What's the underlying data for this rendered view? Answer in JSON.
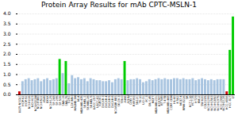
{
  "chart_data": {
    "type": "bar",
    "title": "Protein Array Results for mAb CPTC-MSLN-1",
    "categories": [
      "LU25-NSCLC",
      "HOP-62",
      "HOP-92",
      "NCI-H226",
      "NCI-H23",
      "NCI-H322M",
      "NCI-H460",
      "NCI-H522",
      "A549",
      "EKVX",
      "NCI-H125",
      "SF-268",
      "SF-295",
      "SF-539",
      "SNB-19",
      "SNB-75",
      "U251",
      "LOX IMVI",
      "MALME-3M",
      "M14",
      "MDA-MB-435",
      "SK-MEL-2",
      "SK-MEL-28",
      "SK-MEL-5",
      "UACC-257",
      "UACC-62",
      "IGROV1",
      "OVCAR-3",
      "OVCAR-4",
      "OVCAR-5",
      "OVCAR-8",
      "NCI/ADR-RES",
      "SK-OV-3",
      "786-0",
      "A498",
      "ACHN",
      "CAKI-1",
      "RXF393",
      "SN12C",
      "TK-10",
      "UO-31",
      "PC-3",
      "DU-145",
      "MCF7",
      "MDA-MB-231",
      "HS578T",
      "BT-549",
      "T-47D",
      "MDA-MB-468",
      "CCRF-CEM",
      "HL-60",
      "K-562",
      "MOLT-4",
      "RPMI-8226",
      "SR",
      "HCT-116",
      "HCT-15",
      "HT29",
      "KM12",
      "SW-620",
      "COLO205",
      "NCI-H1299",
      "NCI-H1563",
      "NCI-H1650",
      "NCI-H1975",
      "HCC-2998",
      "NCI-H2126",
      "HCC-4006",
      "HCC-827",
      "LT"
    ],
    "values": [
      0.15,
      0.65,
      0.75,
      0.8,
      0.7,
      0.75,
      0.8,
      0.65,
      0.75,
      0.8,
      0.7,
      0.75,
      0.8,
      1.75,
      1.05,
      1.65,
      0.55,
      0.95,
      0.8,
      0.85,
      0.75,
      0.8,
      0.65,
      0.8,
      0.75,
      0.7,
      0.7,
      0.65,
      0.65,
      0.7,
      0.6,
      0.75,
      0.8,
      0.75,
      1.65,
      0.7,
      0.75,
      0.75,
      0.8,
      0.75,
      0.6,
      0.65,
      0.75,
      0.7,
      0.75,
      0.8,
      0.75,
      0.8,
      0.75,
      0.75,
      0.8,
      0.8,
      0.75,
      0.8,
      0.75,
      0.75,
      0.8,
      0.7,
      0.75,
      0.8,
      0.75,
      0.7,
      0.75,
      0.7,
      0.75,
      0.75,
      0.75,
      0.15,
      2.2,
      3.85
    ],
    "colors": [
      "#cc0000",
      "#a8c4e0",
      "#a8c4e0",
      "#a8c4e0",
      "#a8c4e0",
      "#a8c4e0",
      "#a8c4e0",
      "#a8c4e0",
      "#a8c4e0",
      "#a8c4e0",
      "#a8c4e0",
      "#a8c4e0",
      "#a8c4e0",
      "#00cc00",
      "#a8c4e0",
      "#00cc00",
      "#a8c4e0",
      "#a8c4e0",
      "#a8c4e0",
      "#a8c4e0",
      "#a8c4e0",
      "#a8c4e0",
      "#a8c4e0",
      "#a8c4e0",
      "#a8c4e0",
      "#a8c4e0",
      "#a8c4e0",
      "#a8c4e0",
      "#a8c4e0",
      "#a8c4e0",
      "#a8c4e0",
      "#a8c4e0",
      "#a8c4e0",
      "#a8c4e0",
      "#00cc00",
      "#a8c4e0",
      "#a8c4e0",
      "#a8c4e0",
      "#a8c4e0",
      "#a8c4e0",
      "#a8c4e0",
      "#a8c4e0",
      "#a8c4e0",
      "#a8c4e0",
      "#a8c4e0",
      "#a8c4e0",
      "#a8c4e0",
      "#a8c4e0",
      "#a8c4e0",
      "#a8c4e0",
      "#a8c4e0",
      "#a8c4e0",
      "#a8c4e0",
      "#a8c4e0",
      "#a8c4e0",
      "#a8c4e0",
      "#a8c4e0",
      "#a8c4e0",
      "#a8c4e0",
      "#a8c4e0",
      "#a8c4e0",
      "#a8c4e0",
      "#a8c4e0",
      "#a8c4e0",
      "#a8c4e0",
      "#a8c4e0",
      "#a8c4e0",
      "#cc0000",
      "#00cc00",
      "#00cc00"
    ],
    "ylim": [
      0.0,
      4.0
    ],
    "yticks": [
      {
        "value": 0,
        "label": "0.0"
      },
      0.5,
      {
        "value": 1,
        "label": "1.0"
      },
      1.5,
      {
        "value": 2,
        "label": "2.0"
      },
      2.5,
      {
        "value": 3,
        "label": "3.0"
      },
      3.5,
      {
        "value": 4,
        "label": "4.0"
      }
    ],
    "grid": true
  }
}
